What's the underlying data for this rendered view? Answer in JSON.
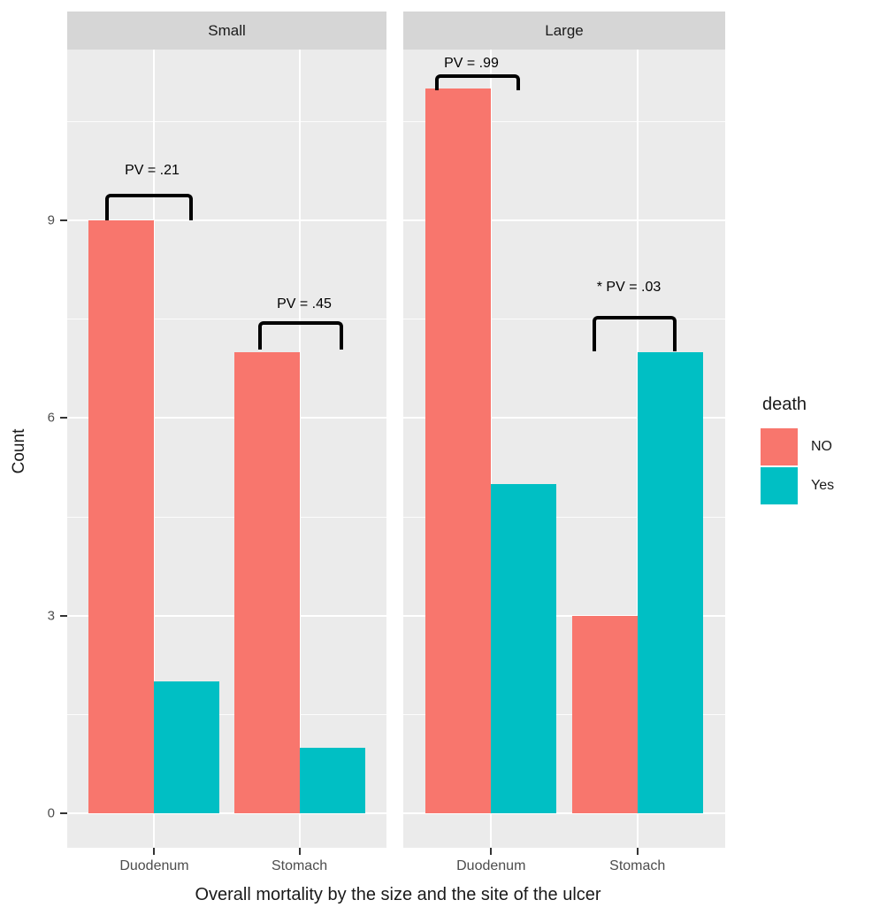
{
  "chart_data": {
    "type": "bar",
    "title": "",
    "xlabel": "Overall mortality by the size and the site of the ulcer",
    "ylabel": "Count",
    "y_ticks": [
      0,
      3,
      6,
      9
    ],
    "ylim": [
      0,
      11.6
    ],
    "grid": true,
    "legend_position": "right",
    "facets": [
      {
        "label": "Small",
        "categories": [
          "Duodenum",
          "Stomach"
        ],
        "series": [
          {
            "name": "NO",
            "values": [
              9,
              7
            ]
          },
          {
            "name": "Yes",
            "values": [
              2,
              1
            ]
          }
        ],
        "annotations": [
          {
            "group": "Duodenum",
            "text": "PV = .21"
          },
          {
            "group": "Stomach",
            "text": "PV = .45"
          }
        ]
      },
      {
        "label": "Large",
        "categories": [
          "Duodenum",
          "Stomach"
        ],
        "series": [
          {
            "name": "NO",
            "values": [
              11,
              3
            ]
          },
          {
            "name": "Yes",
            "values": [
              5,
              7
            ]
          }
        ],
        "annotations": [
          {
            "group": "Duodenum",
            "text": "PV = .99"
          },
          {
            "group": "Stomach",
            "text": "* PV = .03"
          }
        ]
      }
    ],
    "legend": {
      "title": "death",
      "entries": [
        {
          "label": "NO",
          "color": "#F8766D"
        },
        {
          "label": "Yes",
          "color": "#00BFC4"
        }
      ]
    },
    "colors": {
      "panel_background": "#ebebeb",
      "strip_background": "#d6d6d6",
      "gridline": "#ffffff",
      "tick_text": "#4d4d4d"
    }
  }
}
